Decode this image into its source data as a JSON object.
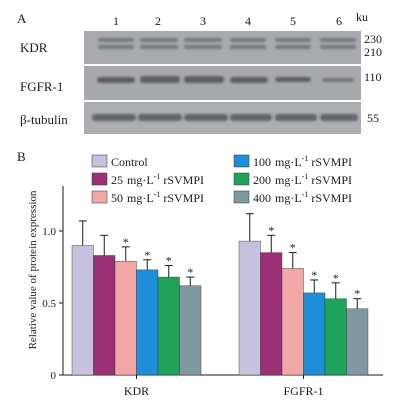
{
  "panel_a": {
    "label": "A",
    "lanes": [
      "1",
      "2",
      "3",
      "4",
      "5",
      "6"
    ],
    "unit": "ku",
    "rows": [
      {
        "name": "KDR",
        "mw": [
          "230",
          "210"
        ]
      },
      {
        "name": "FGFR-1",
        "mw": [
          "110"
        ]
      },
      {
        "name": "β-tubulin",
        "mw": [
          "55"
        ]
      }
    ]
  },
  "chart_data": {
    "label": "B",
    "type": "bar",
    "ylabel": "Relative value of protein expression",
    "ylim": [
      0,
      1.3
    ],
    "yticks": [
      {
        "v": 0,
        "t": "0"
      },
      {
        "v": 0.5,
        "t": "0.5"
      },
      {
        "v": 1.0,
        "t": "1.0"
      }
    ],
    "categories": [
      "KDR",
      "FGFR-1"
    ],
    "series": [
      {
        "name": "Control",
        "unit": "",
        "suffix": "",
        "color": "#c5c1de",
        "values": [
          0.9,
          0.93
        ],
        "errors": [
          0.17,
          0.19
        ],
        "sig": [
          false,
          false
        ]
      },
      {
        "name": "25",
        "unit": "mg·L",
        "sup": "-1",
        "suffix": "rSVMPI",
        "color": "#9b2f74",
        "values": [
          0.83,
          0.85
        ],
        "errors": [
          0.14,
          0.12
        ],
        "sig": [
          false,
          true
        ]
      },
      {
        "name": "50",
        "unit": "mg·L",
        "sup": "-1",
        "suffix": "rSVMPI",
        "color": "#f1a7a5",
        "values": [
          0.79,
          0.74
        ],
        "errors": [
          0.1,
          0.11
        ],
        "sig": [
          true,
          true
        ]
      },
      {
        "name": "100",
        "unit": "mg·L",
        "sup": "-1",
        "suffix": "rSVMPI",
        "color": "#1e8ed8",
        "values": [
          0.73,
          0.57
        ],
        "errors": [
          0.07,
          0.09
        ],
        "sig": [
          true,
          true
        ]
      },
      {
        "name": "200",
        "unit": "mg·L",
        "sup": "-1",
        "suffix": "rSVMPI",
        "color": "#1fa25a",
        "values": [
          0.68,
          0.53
        ],
        "errors": [
          0.08,
          0.11
        ],
        "sig": [
          true,
          true
        ]
      },
      {
        "name": "400",
        "unit": "mg·L",
        "sup": "-1",
        "suffix": "rSVMPI",
        "color": "#7f98a1",
        "values": [
          0.62,
          0.46
        ],
        "errors": [
          0.06,
          0.07
        ],
        "sig": [
          true,
          true
        ]
      }
    ],
    "sig_marker": "*"
  }
}
